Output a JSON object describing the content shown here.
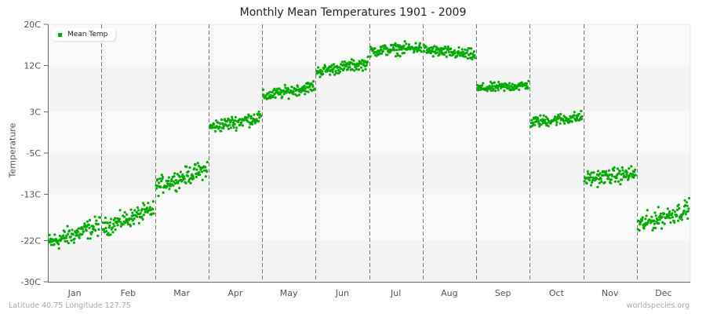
{
  "title": "Monthly Mean Temperatures 1901 - 2009",
  "footer": {
    "location": "Latitude 40.75 Longitude 127.75",
    "source": "worldspecies.org"
  },
  "colors": {
    "point": "#00aa00",
    "band_light": "#fafafa",
    "band_dark": "#f4f4f4",
    "grid": "#777777",
    "axis": "#666666"
  },
  "chart_data": {
    "type": "scatter",
    "title": "Monthly Mean Temperatures 1901 - 2009",
    "xlabel": "",
    "ylabel": "Temperature",
    "ylim": [
      -30,
      20
    ],
    "yticks": [
      "20C",
      "12C",
      "3C",
      "-5C",
      "-13C",
      "-22C",
      "-30C"
    ],
    "ytick_values": [
      20,
      12,
      3,
      -5,
      -13,
      -22,
      -30
    ],
    "categories": [
      "Jan",
      "Feb",
      "Mar",
      "Apr",
      "May",
      "Jun",
      "Jul",
      "Aug",
      "Sep",
      "Oct",
      "Nov",
      "Dec"
    ],
    "legend": [
      "Mean Temp"
    ],
    "legend_position": "top-left",
    "grid": "vertical dashed lines at month boundaries; alternating horizontal bands",
    "points_per_month": 109,
    "series": [
      {
        "name": "Mean Temp",
        "monthly_range_start": [
          -22.5,
          -19.5,
          -11.5,
          0.0,
          6.0,
          10.8,
          14.8,
          15.0,
          7.5,
          1.0,
          -10.0,
          -19.0
        ],
        "monthly_range_end": [
          -19.0,
          -16.0,
          -8.0,
          2.0,
          8.0,
          12.5,
          15.5,
          14.0,
          8.2,
          2.0,
          -9.0,
          -15.8
        ],
        "spread": [
          5.0,
          4.5,
          4.5,
          3.5,
          3.0,
          3.0,
          3.0,
          3.0,
          2.5,
          3.0,
          4.0,
          5.0
        ],
        "approx_monthly_mean": [
          -21,
          -18,
          -10,
          1,
          7,
          11.5,
          15,
          14.5,
          7.8,
          1.5,
          -9.5,
          -17.5
        ]
      }
    ]
  }
}
